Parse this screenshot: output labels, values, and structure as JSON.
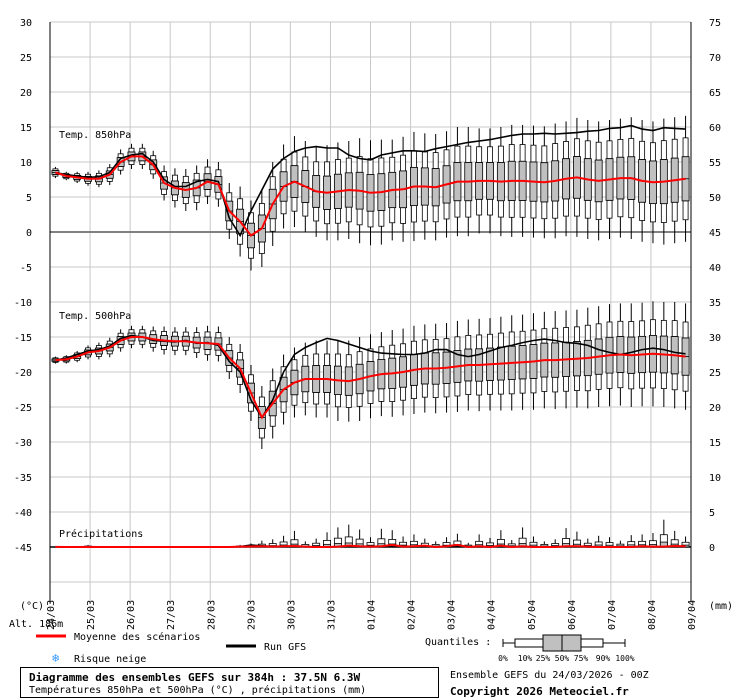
{
  "chart_data": {
    "type": "box-ensemble",
    "title": "Diagramme des ensembles GEFS sur 384h : 37.5N 6.3W",
    "subtitle": "Températures 850hPa et 500hPa (°C) , précipitations (mm)",
    "run_info": "Ensemble GEFS du 24/03/2026 - 00Z",
    "copyright": "Copyright 2026 Meteociel.fr",
    "left_axis_label": "(°C)",
    "right_axis_label": "(mm)",
    "altitude_label": "Alt. 186m",
    "left_ticks": [
      "30",
      "25",
      "20",
      "15",
      "10",
      "5",
      "0",
      "-5",
      "-10",
      "-15",
      "-20",
      "-25",
      "-30",
      "-35",
      "-40",
      "-45"
    ],
    "right_ticks": [
      "75",
      "70",
      "65",
      "60",
      "55",
      "50",
      "45",
      "40",
      "35",
      "30",
      "25",
      "20",
      "15",
      "10",
      "5",
      "0"
    ],
    "x_labels": [
      "24/03",
      "25/03",
      "26/03",
      "27/03",
      "28/03",
      "29/03",
      "30/03",
      "31/03",
      "01/04",
      "02/04",
      "03/04",
      "04/04",
      "05/04",
      "06/04",
      "07/04",
      "08/04",
      "09/04"
    ],
    "panels": [
      {
        "name": "Temp. 850hPa",
        "unit": "°C",
        "axis_range": [
          -5,
          30
        ]
      },
      {
        "name": "Temp. 500hPa",
        "unit": "°C",
        "axis_range": [
          -45,
          -10
        ]
      },
      {
        "name": "Précipitations",
        "unit": "mm",
        "axis_range": [
          0,
          15
        ]
      }
    ],
    "legend": {
      "mean": "Moyenne des scénarios",
      "gfs": "Run GFS",
      "snow": "Risque neige",
      "quantiles_label": "Quantiles :",
      "quantiles": [
        "0%",
        "10%",
        "25%",
        "50%",
        "75%",
        "90%",
        "100%"
      ]
    },
    "series_850": {
      "mean": [
        8.5,
        8,
        7.8,
        7.6,
        7.6,
        8.2,
        10,
        10.8,
        10.8,
        9.6,
        7,
        6.3,
        6,
        6.3,
        7.2,
        6.8,
        3,
        1.5,
        -0.5,
        0.5,
        4,
        6.5,
        7.2,
        6.5,
        5.8,
        5.6,
        5.8,
        6,
        5.9,
        5.6,
        5.7,
        6,
        6.1,
        6.5,
        6.5,
        6.4,
        6.8,
        7.2,
        7.2,
        7.3,
        7.3,
        7.2,
        7.3,
        7.3,
        7.2,
        7.1,
        7.3,
        7.6,
        7.8,
        7.5,
        7.3,
        7.5,
        7.7,
        7.7,
        7.3,
        7.1,
        7.2,
        7.4,
        7.6
      ],
      "gfs": [
        8.5,
        8.2,
        8,
        7.8,
        7.9,
        8.5,
        10.5,
        11,
        11.2,
        10,
        7.5,
        6.5,
        6.5,
        7.2,
        7.5,
        7.2,
        2,
        -0.5,
        3,
        6,
        9,
        10.5,
        11.5,
        12,
        12.2,
        12,
        12,
        11,
        10.5,
        10.3,
        11,
        11.3,
        11.6,
        11.6,
        11.5,
        11.9,
        12.2,
        12.5,
        12.8,
        13,
        13.2,
        13.5,
        13.8,
        14,
        14,
        14.1,
        14,
        14.1,
        14.2,
        14.4,
        14.5,
        14.8,
        14.9,
        15.2,
        14.7,
        14.5,
        14.9,
        14.8,
        14.7
      ],
      "spread": [
        0.8,
        0.6,
        0.8,
        1,
        1.2,
        1.5,
        1.8,
        1.8,
        1.8,
        2,
        2.5,
        2.8,
        3,
        3.2,
        3.2,
        3.2,
        4,
        5,
        5,
        5.5,
        6,
        6,
        6.5,
        6.5,
        6.5,
        6.8,
        7,
        7,
        7.5,
        7.5,
        7.5,
        7.2,
        7.5,
        7.8,
        7.6,
        7.6,
        7.6,
        7.8,
        7.8,
        7.5,
        7.5,
        7.8,
        8,
        8,
        8,
        8,
        8.2,
        8.2,
        8.5,
        8.5,
        8.5,
        8.5,
        8.5,
        8.7,
        8.7,
        8.7,
        9,
        9,
        9
      ]
    },
    "series_500": {
      "mean": [
        -18.3,
        -18.2,
        -17.8,
        -17.2,
        -17,
        -16.5,
        -15.5,
        -15,
        -15,
        -15.3,
        -15.5,
        -15.6,
        -15.6,
        -15.8,
        -15.9,
        -16,
        -18,
        -19.5,
        -23,
        -26.5,
        -24.5,
        -22.5,
        -21.5,
        -21,
        -21,
        -21,
        -21.2,
        -21.3,
        -21,
        -20.6,
        -20.3,
        -20.2,
        -20,
        -19.7,
        -19.5,
        -19.5,
        -19.4,
        -19.2,
        -19,
        -19,
        -18.9,
        -18.8,
        -18.7,
        -18.6,
        -18.5,
        -18.3,
        -18.3,
        -18.2,
        -18.1,
        -18,
        -17.8,
        -17.6,
        -17.5,
        -17.6,
        -17.5,
        -17.4,
        -17.5,
        -17.6,
        -17.8
      ],
      "gfs": [
        -18.3,
        -18,
        -17.5,
        -17,
        -16.8,
        -16.3,
        -15.2,
        -14.8,
        -15,
        -15.5,
        -15.6,
        -15.7,
        -15.5,
        -15.9,
        -15.8,
        -16.2,
        -18.5,
        -20,
        -24,
        -26.5,
        -24,
        -20,
        -17.5,
        -16.5,
        -15.8,
        -15.2,
        -15.5,
        -16,
        -16.5,
        -17,
        -17.3,
        -17.4,
        -17.5,
        -17.5,
        -17.3,
        -16.8,
        -16.8,
        -17.5,
        -17.8,
        -17.5,
        -17,
        -16.5,
        -16.2,
        -15.8,
        -15.5,
        -15.3,
        -15.5,
        -15.8,
        -15.9,
        -16.2,
        -16.8,
        -17.2,
        -17.5,
        -17.2,
        -16.8,
        -16.6,
        -16.8,
        -17.2,
        -17.4
      ],
      "spread": [
        0.5,
        0.6,
        0.8,
        1,
        1.2,
        1.4,
        1.6,
        1.6,
        1.6,
        1.8,
        2,
        2,
        2,
        2.2,
        2.5,
        2.5,
        3,
        3.5,
        4,
        4.5,
        5,
        5,
        5,
        5.2,
        5.5,
        5.5,
        5.8,
        5.8,
        6,
        6,
        6,
        6.2,
        6.2,
        6.3,
        6.3,
        6.4,
        6.4,
        6.5,
        6.5,
        6.6,
        6.6,
        6.7,
        6.8,
        6.8,
        6.9,
        6.9,
        7,
        7,
        7,
        7.2,
        7.2,
        7.3,
        7.3,
        7.4,
        7.4,
        7.5,
        7.5,
        7.6,
        7.6
      ]
    },
    "series_precip": {
      "mean": [
        0.02,
        0,
        0,
        0.02,
        0,
        0,
        0,
        0,
        0,
        0,
        0,
        0,
        0,
        0,
        0,
        0,
        0,
        0.05,
        0.08,
        0.1,
        0.05,
        0.1,
        0.15,
        0.05,
        0,
        0,
        0.05,
        0.2,
        0.1,
        0.05,
        0.1,
        0.3,
        0.05,
        0.1,
        0.2,
        0,
        0.1,
        0.3,
        0,
        0.1,
        0,
        0.2,
        0,
        0.1,
        0,
        0,
        0,
        0.1,
        0.1,
        0.05,
        0,
        0,
        0,
        0,
        0.1,
        0.05,
        0.05,
        0.15,
        0.1
      ],
      "gfs": [
        0,
        0,
        0,
        0,
        0,
        0,
        0,
        0,
        0,
        0,
        0,
        0,
        0,
        0,
        0,
        0,
        0,
        0.1,
        0.3,
        0.2,
        0.1,
        0.05,
        0.1,
        0.05,
        0,
        0,
        0.05,
        0.1,
        0.05,
        0.05,
        0.05,
        0.1,
        0,
        0,
        0.05,
        0,
        0.05,
        0.1,
        0,
        0,
        0,
        0.05,
        0,
        0.05,
        0,
        0,
        0,
        0.05,
        0.05,
        0,
        0,
        0,
        0,
        0,
        0.05,
        0,
        0,
        0.05,
        0.05
      ],
      "max": [
        0.05,
        0.02,
        0.1,
        0.3,
        0.02,
        0,
        0,
        0,
        0,
        0,
        0,
        0,
        0,
        0,
        0,
        0,
        0,
        0.3,
        0.5,
        0.9,
        1.1,
        1.6,
        2.3,
        0.8,
        1.2,
        2.1,
        2.8,
        3.2,
        2.5,
        1.4,
        2.6,
        2.4,
        1.5,
        1.8,
        1.2,
        0.8,
        1.4,
        1.9,
        0.6,
        1.8,
        1.3,
        2.4,
        1.0,
        2.8,
        1.5,
        0.8,
        1.1,
        2.7,
        2.2,
        1.2,
        1.6,
        1.4,
        0.9,
        1.7,
        1.8,
        2.0,
        3.9,
        2.3,
        1.5
      ]
    }
  }
}
